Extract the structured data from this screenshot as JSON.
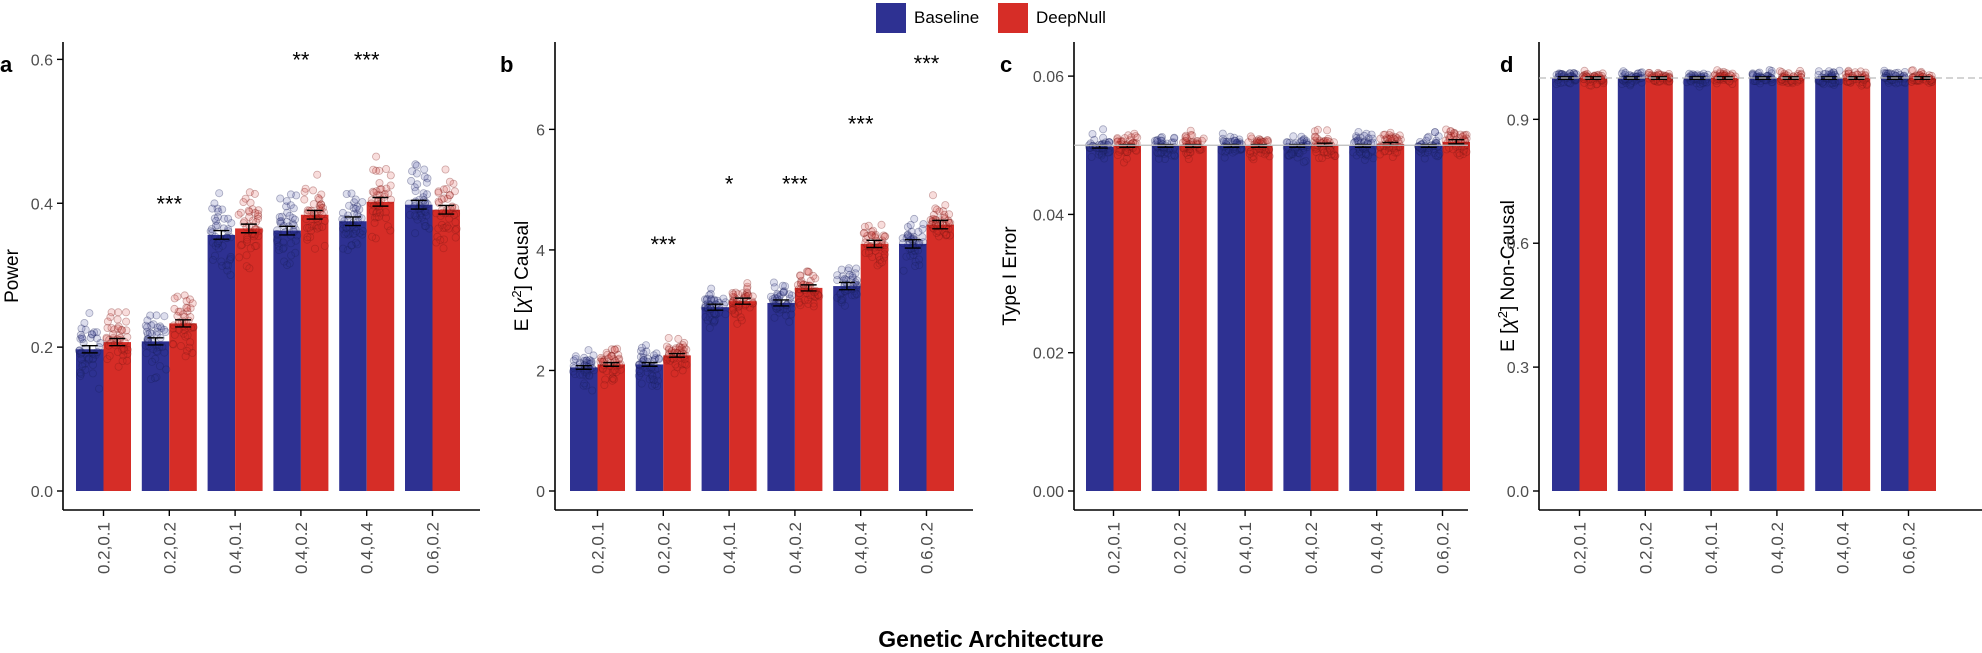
{
  "legend": {
    "items": [
      {
        "label": "Baseline",
        "color": "#2e3192"
      },
      {
        "label": "DeepNull",
        "color": "#d62d27"
      }
    ]
  },
  "colors": {
    "baseline": "#2e3192",
    "deepnull": "#d62d27"
  },
  "x_title": "Genetic Architecture",
  "chart_data": [
    {
      "panel": "a",
      "type": "bar",
      "ylabel": "Power",
      "ylim": [
        0,
        0.62
      ],
      "yticks": [
        "0.0",
        "0.2",
        "0.4",
        "0.6"
      ],
      "ytick_values": [
        0,
        0.2,
        0.4,
        0.6
      ],
      "categories": [
        "0.2,0.1",
        "0.2,0.2",
        "0.4,0.1",
        "0.4,0.2",
        "0.4,0.4",
        "0.6,0.2"
      ],
      "series": [
        {
          "name": "Baseline",
          "values": [
            0.197,
            0.208,
            0.356,
            0.362,
            0.375,
            0.398
          ],
          "errors": [
            0.005,
            0.005,
            0.006,
            0.006,
            0.006,
            0.006
          ]
        },
        {
          "name": "DeepNull",
          "values": [
            0.207,
            0.233,
            0.365,
            0.384,
            0.402,
            0.391
          ],
          "errors": [
            0.005,
            0.005,
            0.006,
            0.006,
            0.006,
            0.006
          ]
        }
      ],
      "annotations": [
        "",
        "***",
        "",
        "**",
        "***",
        ""
      ],
      "annotation_y": [
        0,
        0.4,
        0,
        0.6,
        0.6,
        0
      ],
      "points_spread": 0.06,
      "points_max": 0.53
    },
    {
      "panel": "b",
      "type": "bar",
      "ylabel_prefix": "E [",
      "ylabel_symbol": "χ",
      "ylabel_sup": "2",
      "ylabel_suffix": "] Causal",
      "ylim": [
        0,
        7.4
      ],
      "yticks": [
        "0",
        "2",
        "4",
        "6"
      ],
      "ytick_values": [
        0,
        2,
        4,
        6
      ],
      "categories": [
        "0.2,0.1",
        "0.2,0.2",
        "0.4,0.1",
        "0.4,0.2",
        "0.4,0.4",
        "0.6,0.2"
      ],
      "series": [
        {
          "name": "Baseline",
          "values": [
            2.05,
            2.1,
            3.05,
            3.12,
            3.4,
            4.1
          ],
          "errors": [
            0.03,
            0.03,
            0.05,
            0.05,
            0.06,
            0.07
          ]
        },
        {
          "name": "DeepNull",
          "values": [
            2.1,
            2.25,
            3.15,
            3.37,
            4.1,
            4.42
          ],
          "errors": [
            0.03,
            0.03,
            0.05,
            0.05,
            0.06,
            0.07
          ]
        }
      ],
      "annotations": [
        "",
        "***",
        "*",
        "***",
        "***",
        "***"
      ],
      "annotation_y": [
        0,
        4.1,
        5.1,
        5.1,
        6.1,
        7.1
      ],
      "points_spread": 0.45,
      "points_max": 5.95
    },
    {
      "panel": "c",
      "type": "bar",
      "ylabel": "Type I Error",
      "ylim": [
        0,
        0.0645
      ],
      "yticks": [
        "0.00",
        "0.02",
        "0.04",
        "0.06"
      ],
      "ytick_values": [
        0,
        0.02,
        0.04,
        0.06
      ],
      "categories": [
        "0.2,0.1",
        "0.2,0.2",
        "0.4,0.1",
        "0.4,0.2",
        "0.4,0.4",
        "0.6,0.2"
      ],
      "series": [
        {
          "name": "Baseline",
          "values": [
            0.0498,
            0.0499,
            0.0499,
            0.0499,
            0.0499,
            0.0499
          ],
          "errors": [
            0.0002,
            0.0002,
            0.0002,
            0.0002,
            0.0002,
            0.0002
          ]
        },
        {
          "name": "DeepNull",
          "values": [
            0.0499,
            0.0499,
            0.0499,
            0.0501,
            0.0502,
            0.0505
          ],
          "errors": [
            0.0002,
            0.0002,
            0.0002,
            0.0002,
            0.0002,
            0.0003
          ]
        }
      ],
      "annotations": [
        "",
        "",
        "",
        "",
        "",
        ""
      ],
      "annotation_y": [
        0,
        0,
        0,
        0,
        0,
        0
      ],
      "reference_line": 0.05,
      "points_spread": 0.0022,
      "points_max": 0.0625
    },
    {
      "panel": "d",
      "type": "bar",
      "ylabel_prefix": "E [",
      "ylabel_symbol": "χ",
      "ylabel_sup": "2",
      "ylabel_suffix": "] Non-Causal",
      "ylim": [
        0,
        1.08
      ],
      "yticks": [
        "0.0",
        "0.3",
        "0.6",
        "0.9"
      ],
      "ytick_values": [
        0,
        0.3,
        0.6,
        0.9
      ],
      "categories": [
        "0.2,0.1",
        "0.2,0.2",
        "0.4,0.1",
        "0.4,0.2",
        "0.4,0.4",
        "0.6,0.2"
      ],
      "series": [
        {
          "name": "Baseline",
          "values": [
            1.0,
            1.0,
            1.0,
            1.0,
            1.0,
            1.0
          ],
          "errors": [
            0.003,
            0.003,
            0.003,
            0.003,
            0.003,
            0.003
          ]
        },
        {
          "name": "DeepNull",
          "values": [
            1.0,
            1.0,
            1.0,
            1.0,
            1.0,
            1.0
          ],
          "errors": [
            0.003,
            0.003,
            0.003,
            0.003,
            0.003,
            0.003
          ]
        }
      ],
      "annotations": [
        "",
        "",
        "",
        "",
        "",
        ""
      ],
      "annotation_y": [
        0,
        0,
        0,
        0,
        0,
        0
      ],
      "reference_line": 1.0,
      "points_spread": 0.02,
      "points_max": 1.09
    }
  ]
}
